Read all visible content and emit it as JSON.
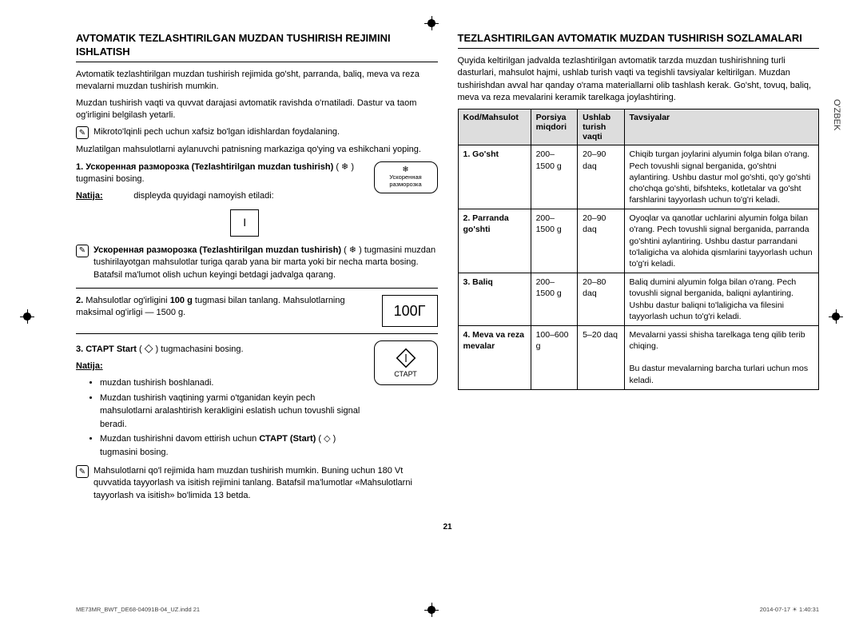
{
  "page": {
    "number": "21",
    "sidetab": "O'ZBEK",
    "footer_left": "ME73MR_BWT_DE68-04091B-04_UZ.indd   21",
    "footer_right": "2014-07-17   ☀ 1:40:31"
  },
  "left": {
    "heading": "AVTOMATIK TEZLASHTIRILGAN MUZDAN TUSHIRISH REJIMINI ISHLATISH",
    "intro1": "Avtomatik tezlashtirilgan muzdan tushirish rejimida go'sht, parranda, baliq, meva va reza mevalarni muzdan tushirish mumkin.",
    "intro2": "Muzdan tushirish vaqti va quvvat darajasi avtomatik ravishda o'rnatiladi. Dastur va taom og'irligini belgilash yetarli.",
    "note1": "Mikroto'lqinli pech uchun xafsiz bo'lgan idishlardan foydalaning.",
    "intro3": "Muzlatilgan mahsulotlarni aylanuvchi patnisning markaziga qo'ying va eshikchani yoping.",
    "step1a": "1. Ускоренная разморозка (Tezlashtirilgan muzdan tushirish)",
    "step1b": "( ❄ ) tugmasini bosing.",
    "step1_natija_label": "Natija:",
    "step1_natija": "displeyda quyidagi namoyish etiladi:",
    "step1_display": "I",
    "step1_box_line1": "❄",
    "step1_box_line2": "Ускоренная разморозка",
    "note2_bold": "Ускоренная разморозка (Tezlashtirilgan muzdan tushirish)",
    "note2_rest": "tugmasini muzdan tushirilayotgan mahsulotlar turiga qarab yana bir marta yoki bir necha marta bosing. Batafsil ma'lumot olish uchun keyingi betdagi jadvalga qarang.",
    "step2a": "2.",
    "step2b": "Mahsulotlar og'irligini",
    "step2c": "100 g",
    "step2d": "tugmasi bilan tanlang. Mahsulotlarning maksimal og'irligi — 1500 g.",
    "step2_display": "100Г",
    "step3a": "3. СТАРТ Start",
    "step3b": "tugmachasini bosing.",
    "step3_natija": "Natija:",
    "step3_box": "СТАРТ",
    "bullets": [
      "muzdan tushirish boshlanadi.",
      "Muzdan tushirish vaqtining yarmi o'tganidan keyin pech mahsulotlarni aralashtirish kerakligini eslatish uchun tovushli signal beradi.",
      "Muzdan tushirishni davom ettirish uchun СТАРТ (Start) ( ◇ ) tugmasini bosing."
    ],
    "note3": "Mahsulotlarni qo'l rejimida ham muzdan tushirish mumkin. Buning uchun 180 Vt quvvatida tayyorlash va isitish rejimini tanlang. Batafsil ma'lumotlar «Mahsulotlarni tayyorlash va isitish» bo'limida 13 betda."
  },
  "right": {
    "heading": "TEZLASHTIRILGAN AVTOMATIK MUZDAN TUSHIRISH SOZLAMALARI",
    "intro": "Quyida keltirilgan jadvalda tezlashtirilgan avtomatik tarzda muzdan tushirishning turli dasturlari, mahsulot hajmi, ushlab turish vaqti va tegishli tavsiyalar keltirilgan. Muzdan tushirishdan avval har qanday o'rama materiallarni olib tashlash kerak. Go'sht, tovuq, baliq, meva va reza mevalarini keramik tarelkaga joylashtiring.",
    "headers": [
      "Kod/Mahsulot",
      "Porsiya miqdori",
      "Ushlab turish vaqti",
      "Tavsiyalar"
    ],
    "rows": [
      {
        "code": "1. Go'sht",
        "portion": "200–1500 g",
        "time": "20–90 daq",
        "advice": "Chiqib turgan joylarini alyumin folga bilan o'rang. Pech tovushli signal berganida, go'shtni aylantiring. Ushbu dastur mol go'shti, qo'y go'shti cho'chqa go'shti, bifshteks, kotletalar va go'sht farshlarini tayyorlash uchun to'g'ri keladi."
      },
      {
        "code": "2. Parranda go'shti",
        "portion": "200–1500 g",
        "time": "20–90 daq",
        "advice": "Oyoqlar va qanotlar uchlarini alyumin folga bilan o'rang. Pech tovushli signal berganida, parranda go'shtini aylantiring. Ushbu dastur parrandani to'laligicha va alohida qismlarini tayyorlash uchun to'g'ri keladi."
      },
      {
        "code": "3. Baliq",
        "portion": "200–1500 g",
        "time": "20–80 daq",
        "advice": "Baliq dumini alyumin folga bilan o'rang. Pech tovushli signal berganida, baliqni aylantiring. Ushbu dastur baliqni to'laligicha va filesini tayyorlash uchun to'g'ri keladi."
      },
      {
        "code": "4. Meva va reza mevalar",
        "portion": "100–600 g",
        "time": "5–20 daq",
        "advice": "Mevalarni yassi shisha tarelkaga teng qilib terib chiqing.\n\nBu dastur mevalarning barcha turlari uchun mos keladi."
      }
    ]
  }
}
